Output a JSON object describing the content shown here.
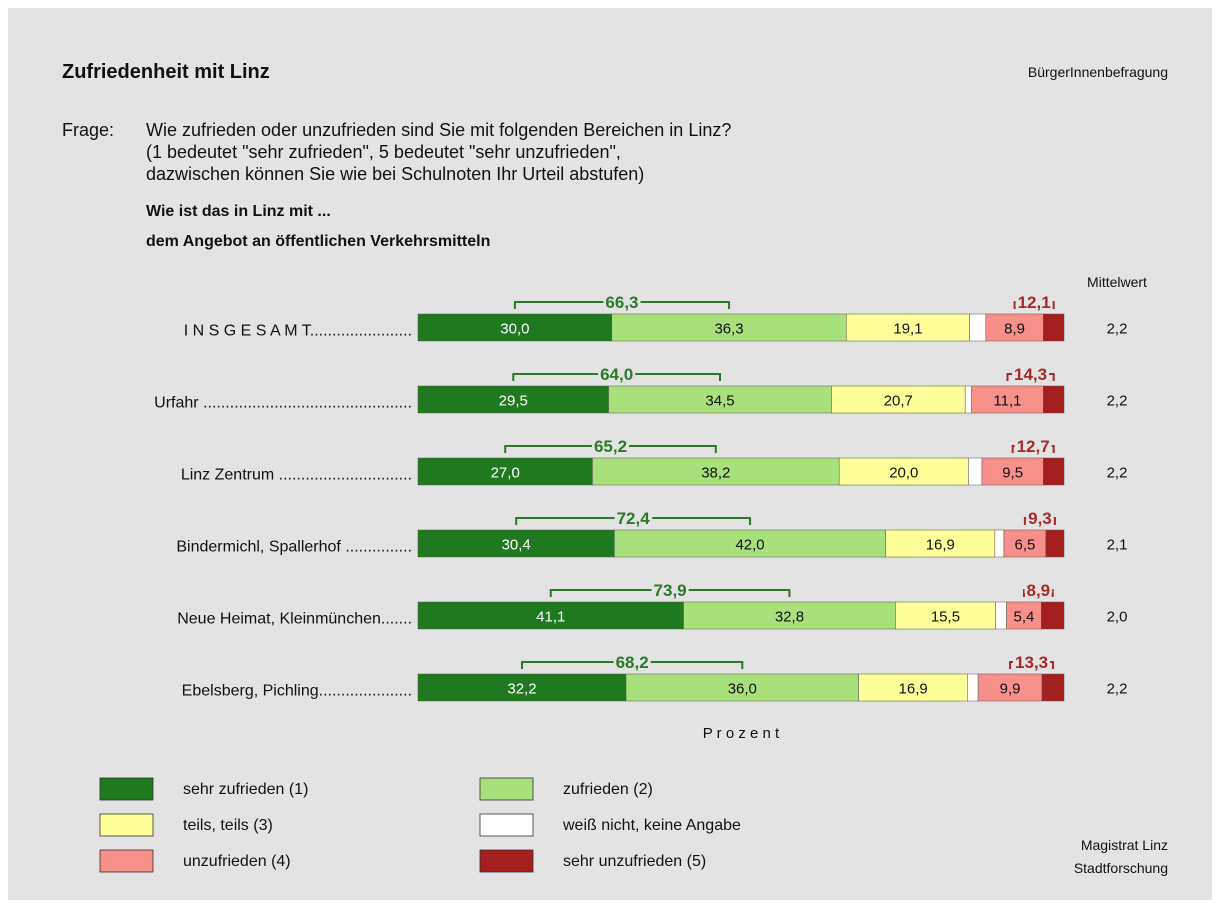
{
  "chart_data": {
    "type": "stacked_bar",
    "title": "Zufriedenheit mit Linz",
    "source_top": "BürgerInnenbefragung",
    "question_label": "Frage:",
    "question_lines": [
      "Wie zufrieden oder unzufrieden sind Sie mit folgenden Bereichen in Linz?",
      "(1 bedeutet \"sehr zufrieden\", 5 bedeutet \"sehr unzufrieden\",",
      "dazwischen können Sie wie bei Schulnoten Ihr Urteil abstufen)"
    ],
    "subtitle_lines": [
      "Wie ist das in Linz mit ...",
      "dem Angebot an öffentlichen Verkehrsmitteln"
    ],
    "x_label": "P r o z e n t",
    "xlim": [
      0,
      100
    ],
    "categories": [
      "I N S G E S A M T.......................",
      "Urfahr ...............................................",
      "Linz Zentrum ..............................",
      "Bindermichl, Spallerhof ...............",
      "Neue Heimat, Kleinmünchen.......",
      "Ebelsberg, Pichling....................."
    ],
    "series": [
      {
        "name": "sehr zufrieden (1)",
        "color": "#1f7a1f",
        "values": [
          30.0,
          29.5,
          27.0,
          30.4,
          41.1,
          32.2
        ],
        "value_labels": [
          "30,0",
          "29,5",
          "27,0",
          "30,4",
          "41,1",
          "32,2"
        ]
      },
      {
        "name": "zufrieden  (2)",
        "color": "#a8e07c",
        "values": [
          36.3,
          34.5,
          38.2,
          42.0,
          32.8,
          36.0
        ],
        "value_labels": [
          "36,3",
          "34,5",
          "38,2",
          "42,0",
          "32,8",
          "36,0"
        ]
      },
      {
        "name": "teils, teils  (3)",
        "color": "#ffff99",
        "values": [
          19.1,
          20.7,
          20.0,
          16.9,
          15.5,
          16.9
        ],
        "value_labels": [
          "19,1",
          "20,7",
          "20,0",
          "16,9",
          "15,5",
          "16,9"
        ]
      },
      {
        "name": "weiß nicht, keine Angabe",
        "color": "#ffffff",
        "values": [
          2.5,
          1.0,
          2.1,
          1.4,
          1.7,
          1.6
        ]
      },
      {
        "name": "unzufrieden  (4)",
        "color": "#f8908a",
        "values": [
          8.9,
          11.1,
          9.5,
          6.5,
          5.4,
          9.9
        ],
        "value_labels": [
          "8,9",
          "11,1",
          "9,5",
          "6,5",
          "5,4",
          "9,9"
        ]
      },
      {
        "name": "sehr unzufrieden (5)",
        "color": "#a51f1f",
        "values": [
          3.2,
          3.2,
          3.2,
          2.8,
          3.5,
          3.4
        ]
      }
    ],
    "satisfied_totals": {
      "color": "#2a7a2a",
      "values": [
        66.3,
        64.0,
        65.2,
        72.4,
        73.9,
        68.2
      ],
      "value_labels": [
        "66,3",
        "64,0",
        "65,2",
        "72,4",
        "73,9",
        "68,2"
      ]
    },
    "dissatisfied_totals": {
      "color": "#a52a2a",
      "values": [
        12.1,
        14.3,
        12.7,
        9.3,
        8.9,
        13.3
      ],
      "value_labels": [
        "12,1",
        "14,3",
        "12,7",
        "9,3",
        "8,9",
        "13,3"
      ]
    },
    "mean_header": "Mittelwert",
    "means": {
      "values": [
        2.2,
        2.2,
        2.2,
        2.1,
        2.0,
        2.2
      ],
      "value_labels": [
        "2,2",
        "2,2",
        "2,2",
        "2,1",
        "2,0",
        "2,2"
      ]
    },
    "footer_lines": [
      "Magistrat Linz",
      "Stadtforschung"
    ]
  }
}
